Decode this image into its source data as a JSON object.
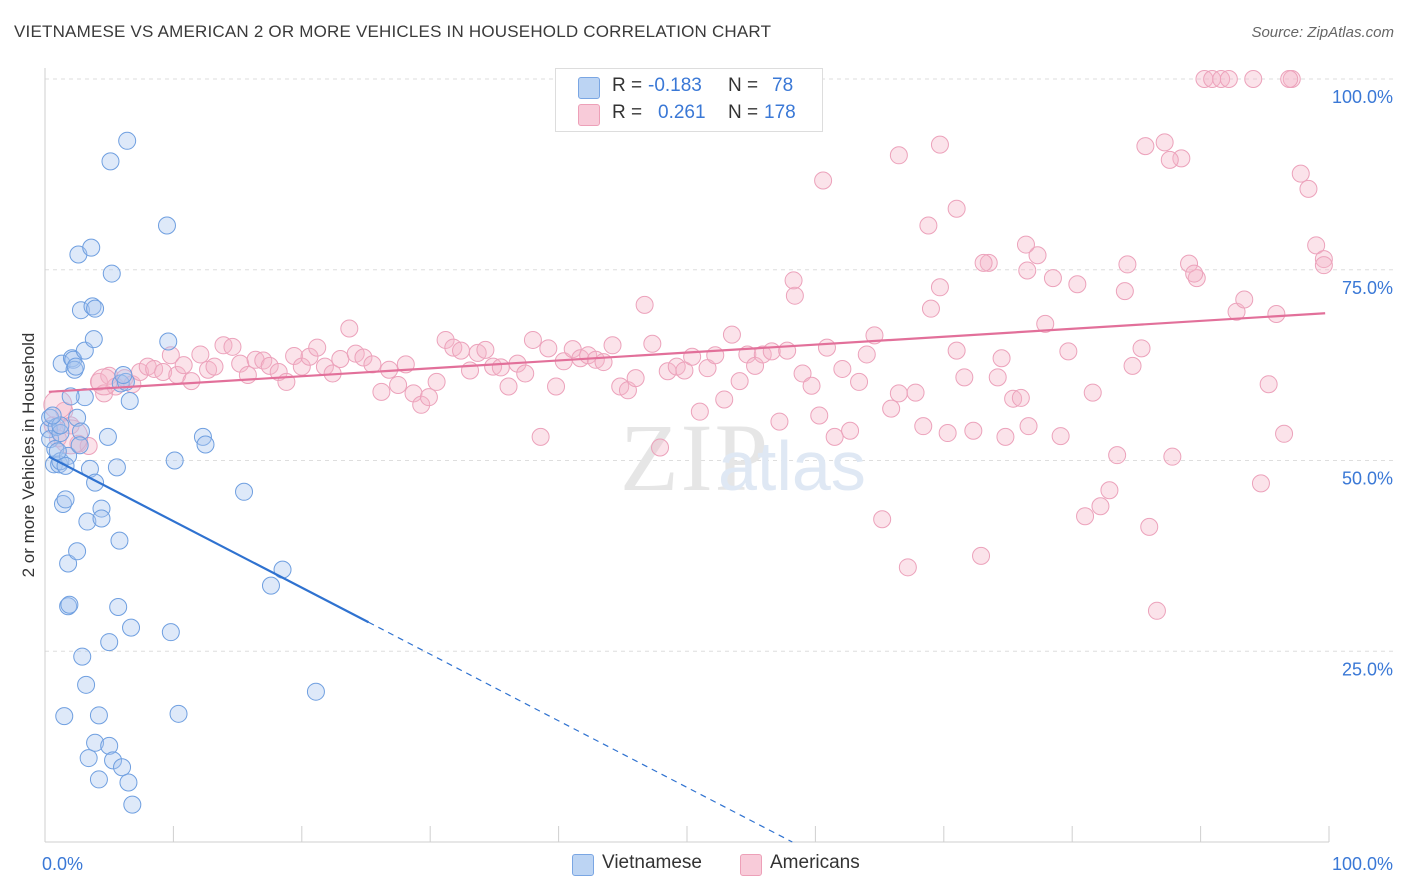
{
  "title": "VIETNAMESE VS AMERICAN 2 OR MORE VEHICLES IN HOUSEHOLD CORRELATION CHART",
  "source": "Source: ZipAtlas.com",
  "watermark": {
    "zip": "ZIP",
    "atlas": "atlas"
  },
  "legend": {
    "rows": [
      {
        "r_label": "R =",
        "r_value": "-0.183",
        "n_label": "N =",
        "n_value": "78"
      },
      {
        "r_label": "R =",
        "r_value": "0.261",
        "n_label": "N =",
        "n_value": "178"
      }
    ]
  },
  "colors": {
    "vietnamese": "#a9c6ee",
    "vietnamese_line": "#2f72d0",
    "americans": "#f4b5c8",
    "americans_line": "#e2709a",
    "tick_label": "#3a78d6"
  },
  "chart_data": {
    "type": "scatter",
    "xlabel": "",
    "ylabel": "2 or more Vehicles in Household",
    "xlim": [
      0,
      100
    ],
    "ylim": [
      0,
      100
    ],
    "x_tick_labels": [
      "0.0%",
      "100.0%"
    ],
    "y_tick_labels": [
      "100.0%",
      "75.0%",
      "50.0%",
      "25.0%"
    ],
    "y_tick_values": [
      100,
      75,
      50,
      25
    ],
    "grid": true,
    "series": [
      {
        "name": "Vietnamese",
        "trend": {
          "x0": 0.3,
          "y0": 50.5,
          "x1": 25.2,
          "y1": 28.8,
          "dash_to_x": 58.2,
          "dash_to_y": 0
        },
        "points": [
          [
            0.3,
            54.1
          ],
          [
            0.4,
            52.8
          ],
          [
            0.4,
            55.6
          ],
          [
            0.7,
            49.5
          ],
          [
            0.8,
            51.5
          ],
          [
            0.9,
            54.4
          ],
          [
            1.1,
            49.5
          ],
          [
            1.2,
            49.9
          ],
          [
            1.2,
            53.6
          ],
          [
            1.3,
            62.7
          ],
          [
            1.4,
            44.3
          ],
          [
            1.5,
            16.5
          ],
          [
            1.6,
            44.9
          ],
          [
            1.8,
            50.6
          ],
          [
            1.8,
            36.5
          ],
          [
            1.8,
            30.9
          ],
          [
            1.9,
            31.1
          ],
          [
            2.1,
            63.4
          ],
          [
            2.2,
            63.2
          ],
          [
            2.3,
            61.9
          ],
          [
            2.4,
            62.3
          ],
          [
            2.5,
            55.6
          ],
          [
            2.5,
            38.1
          ],
          [
            2.6,
            77.0
          ],
          [
            2.8,
            53.8
          ],
          [
            2.8,
            69.7
          ],
          [
            2.9,
            24.3
          ],
          [
            3.1,
            58.3
          ],
          [
            3.1,
            64.4
          ],
          [
            3.2,
            20.6
          ],
          [
            3.3,
            42.0
          ],
          [
            3.4,
            11.0
          ],
          [
            3.6,
            77.9
          ],
          [
            3.7,
            70.2
          ],
          [
            3.8,
            65.9
          ],
          [
            3.9,
            69.9
          ],
          [
            3.9,
            13.0
          ],
          [
            4.2,
            16.6
          ],
          [
            4.2,
            8.2
          ],
          [
            4.4,
            43.7
          ],
          [
            4.4,
            42.4
          ],
          [
            5.0,
            12.6
          ],
          [
            5.0,
            26.2
          ],
          [
            5.1,
            89.2
          ],
          [
            5.2,
            74.5
          ],
          [
            5.3,
            10.7
          ],
          [
            5.6,
            49.1
          ],
          [
            5.7,
            30.8
          ],
          [
            5.8,
            39.5
          ],
          [
            5.9,
            60.1
          ],
          [
            6.0,
            9.8
          ],
          [
            6.3,
            60.3
          ],
          [
            6.4,
            91.9
          ],
          [
            6.5,
            7.8
          ],
          [
            6.6,
            57.8
          ],
          [
            6.7,
            28.1
          ],
          [
            6.8,
            4.9
          ],
          [
            9.5,
            80.8
          ],
          [
            9.6,
            65.6
          ],
          [
            9.8,
            27.5
          ],
          [
            10.1,
            50.0
          ],
          [
            10.4,
            16.8
          ],
          [
            12.3,
            53.1
          ],
          [
            12.5,
            52.1
          ],
          [
            15.5,
            45.9
          ],
          [
            17.6,
            33.6
          ],
          [
            18.5,
            35.7
          ],
          [
            21.1,
            19.7
          ],
          [
            1.0,
            51.2
          ],
          [
            1.6,
            49.3
          ],
          [
            2.7,
            52.0
          ],
          [
            3.5,
            48.9
          ],
          [
            4.9,
            53.1
          ],
          [
            6.1,
            61.2
          ],
          [
            1.2,
            54.6
          ],
          [
            0.6,
            55.9
          ],
          [
            2.0,
            58.4
          ],
          [
            3.9,
            47.1
          ]
        ]
      },
      {
        "name": "Americans",
        "trend": {
          "x0": 0.3,
          "y0": 59.0,
          "x1": 99.7,
          "y1": 69.3
        },
        "points": [
          [
            0.6,
            54.6
          ],
          [
            1.0,
            52.9
          ],
          [
            1.5,
            56.5
          ],
          [
            2.0,
            54.6
          ],
          [
            2.6,
            52.2
          ],
          [
            3.4,
            51.9
          ],
          [
            4.2,
            60.3
          ],
          [
            4.6,
            58.8
          ],
          [
            5.0,
            61.1
          ],
          [
            5.5,
            59.7
          ],
          [
            6.2,
            60.8
          ],
          [
            6.8,
            60.0
          ],
          [
            7.4,
            61.6
          ],
          [
            8.0,
            62.3
          ],
          [
            8.5,
            62.0
          ],
          [
            9.2,
            61.6
          ],
          [
            9.8,
            63.8
          ],
          [
            10.3,
            61.2
          ],
          [
            10.8,
            62.5
          ],
          [
            11.4,
            60.4
          ],
          [
            12.1,
            63.9
          ],
          [
            12.7,
            61.9
          ],
          [
            13.2,
            62.3
          ],
          [
            13.9,
            65.1
          ],
          [
            14.6,
            64.9
          ],
          [
            15.2,
            62.7
          ],
          [
            15.8,
            61.2
          ],
          [
            16.4,
            63.2
          ],
          [
            17.0,
            63.1
          ],
          [
            17.5,
            62.4
          ],
          [
            18.2,
            61.6
          ],
          [
            18.8,
            60.3
          ],
          [
            19.4,
            63.7
          ],
          [
            20.0,
            62.3
          ],
          [
            20.6,
            63.6
          ],
          [
            21.2,
            64.8
          ],
          [
            21.8,
            62.3
          ],
          [
            22.4,
            61.4
          ],
          [
            23.0,
            63.3
          ],
          [
            23.7,
            67.3
          ],
          [
            24.2,
            64.0
          ],
          [
            24.8,
            63.5
          ],
          [
            25.5,
            62.6
          ],
          [
            26.2,
            59.0
          ],
          [
            26.8,
            61.9
          ],
          [
            27.5,
            59.9
          ],
          [
            28.1,
            62.6
          ],
          [
            28.7,
            58.8
          ],
          [
            29.3,
            57.3
          ],
          [
            29.9,
            58.3
          ],
          [
            30.5,
            60.3
          ],
          [
            31.2,
            65.8
          ],
          [
            31.8,
            64.8
          ],
          [
            32.4,
            64.4
          ],
          [
            33.1,
            61.8
          ],
          [
            33.7,
            64.1
          ],
          [
            34.3,
            64.5
          ],
          [
            34.9,
            62.3
          ],
          [
            35.5,
            62.2
          ],
          [
            36.1,
            59.7
          ],
          [
            36.8,
            62.7
          ],
          [
            37.4,
            61.4
          ],
          [
            38.0,
            65.8
          ],
          [
            38.6,
            53.1
          ],
          [
            39.2,
            64.7
          ],
          [
            39.8,
            59.7
          ],
          [
            40.4,
            63.0
          ],
          [
            41.1,
            64.6
          ],
          [
            41.7,
            63.4
          ],
          [
            42.3,
            63.8
          ],
          [
            42.9,
            63.2
          ],
          [
            43.5,
            62.9
          ],
          [
            44.2,
            65.1
          ],
          [
            44.8,
            59.7
          ],
          [
            45.4,
            59.2
          ],
          [
            46.0,
            60.8
          ],
          [
            46.7,
            70.4
          ],
          [
            47.3,
            65.3
          ],
          [
            47.9,
            51.7
          ],
          [
            48.5,
            61.7
          ],
          [
            49.2,
            62.3
          ],
          [
            49.8,
            61.8
          ],
          [
            50.4,
            63.6
          ],
          [
            51.0,
            56.4
          ],
          [
            51.6,
            62.1
          ],
          [
            52.2,
            63.8
          ],
          [
            52.9,
            58.0
          ],
          [
            53.5,
            66.5
          ],
          [
            54.1,
            60.4
          ],
          [
            54.7,
            63.9
          ],
          [
            55.3,
            62.4
          ],
          [
            55.9,
            63.9
          ],
          [
            56.6,
            64.3
          ],
          [
            57.2,
            55.1
          ],
          [
            57.8,
            64.4
          ],
          [
            58.4,
            71.6
          ],
          [
            59.0,
            61.4
          ],
          [
            59.7,
            59.8
          ],
          [
            60.3,
            55.9
          ],
          [
            60.9,
            64.8
          ],
          [
            61.5,
            53.1
          ],
          [
            62.1,
            62.0
          ],
          [
            62.7,
            53.9
          ],
          [
            63.4,
            60.3
          ],
          [
            64.0,
            63.9
          ],
          [
            64.6,
            66.4
          ],
          [
            65.2,
            42.3
          ],
          [
            65.9,
            56.8
          ],
          [
            66.5,
            58.8
          ],
          [
            67.2,
            36.0
          ],
          [
            67.8,
            58.9
          ],
          [
            68.4,
            54.5
          ],
          [
            69.0,
            69.9
          ],
          [
            69.7,
            72.7
          ],
          [
            70.3,
            53.6
          ],
          [
            71.0,
            64.4
          ],
          [
            71.6,
            60.9
          ],
          [
            72.3,
            53.9
          ],
          [
            72.9,
            37.5
          ],
          [
            73.5,
            75.9
          ],
          [
            74.2,
            60.9
          ],
          [
            74.8,
            53.1
          ],
          [
            75.4,
            58.1
          ],
          [
            76.0,
            58.2
          ],
          [
            76.6,
            54.5
          ],
          [
            77.3,
            76.9
          ],
          [
            77.9,
            67.9
          ],
          [
            78.5,
            73.9
          ],
          [
            79.1,
            53.2
          ],
          [
            79.7,
            64.3
          ],
          [
            80.4,
            73.1
          ],
          [
            81.0,
            42.7
          ],
          [
            81.6,
            58.9
          ],
          [
            82.2,
            44.0
          ],
          [
            82.9,
            46.1
          ],
          [
            83.5,
            50.7
          ],
          [
            84.1,
            72.2
          ],
          [
            84.7,
            62.4
          ],
          [
            85.4,
            64.7
          ],
          [
            86.0,
            41.3
          ],
          [
            86.6,
            30.3
          ],
          [
            87.2,
            91.7
          ],
          [
            87.8,
            50.5
          ],
          [
            88.5,
            89.6
          ],
          [
            89.1,
            75.8
          ],
          [
            89.7,
            73.9
          ],
          [
            90.3,
            100.0
          ],
          [
            90.9,
            100.0
          ],
          [
            91.6,
            100.0
          ],
          [
            92.2,
            100.0
          ],
          [
            92.8,
            69.5
          ],
          [
            93.4,
            71.1
          ],
          [
            94.1,
            100.0
          ],
          [
            94.7,
            47.0
          ],
          [
            95.3,
            60.0
          ],
          [
            95.9,
            69.2
          ],
          [
            96.5,
            53.5
          ],
          [
            97.1,
            100.0
          ],
          [
            97.8,
            87.6
          ],
          [
            98.4,
            85.6
          ],
          [
            99.0,
            78.2
          ],
          [
            99.6,
            76.4
          ],
          [
            99.6,
            75.6
          ],
          [
            96.9,
            100.0
          ],
          [
            74.5,
            63.4
          ],
          [
            58.3,
            73.6
          ],
          [
            68.8,
            80.8
          ],
          [
            73.1,
            75.9
          ],
          [
            60.6,
            86.7
          ],
          [
            69.7,
            91.4
          ],
          [
            76.4,
            78.3
          ],
          [
            71.0,
            83.0
          ],
          [
            85.7,
            91.2
          ],
          [
            84.3,
            75.7
          ],
          [
            87.6,
            89.4
          ],
          [
            89.5,
            74.5
          ],
          [
            76.5,
            74.9
          ],
          [
            66.5,
            90.0
          ]
        ]
      }
    ]
  },
  "bottom_legend": [
    {
      "label": "Vietnamese"
    },
    {
      "label": "Americans"
    }
  ]
}
